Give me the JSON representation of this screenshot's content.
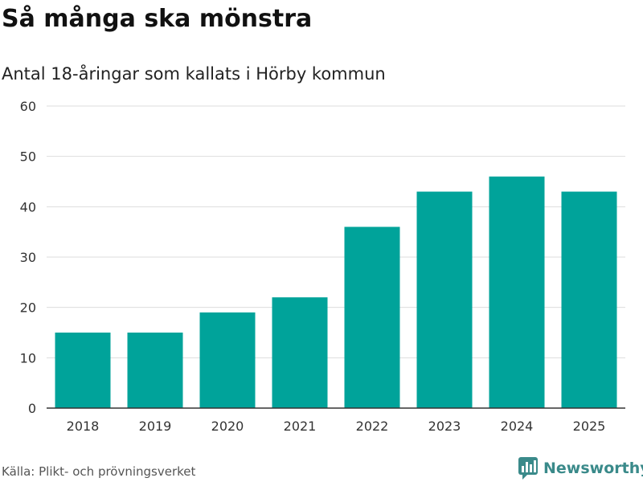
{
  "title": "Så många ska mönstra",
  "subtitle": "Antal 18-åringar som kallats i Hörby kommun",
  "source": "Källa: Plikt- och prövningsverket",
  "brand": "Newsworthy",
  "colors": {
    "bar": "#00a39a",
    "grid": "#dddddd",
    "axis": "#333333",
    "brand": "#3a8a8a"
  },
  "icons": {
    "brand_logo": "newsworthy-logo-icon"
  },
  "chart_data": {
    "type": "bar",
    "title": "Så många ska mönstra",
    "subtitle": "Antal 18-åringar som kallats i Hörby kommun",
    "xlabel": "",
    "ylabel": "",
    "categories": [
      "2018",
      "2019",
      "2020",
      "2021",
      "2022",
      "2023",
      "2024",
      "2025"
    ],
    "values": [
      15,
      15,
      19,
      22,
      36,
      43,
      46,
      43
    ],
    "ylim": [
      0,
      60
    ],
    "yticks": [
      "0",
      "10",
      "20",
      "30",
      "40",
      "50",
      "60"
    ],
    "grid": true,
    "legend": "none"
  }
}
